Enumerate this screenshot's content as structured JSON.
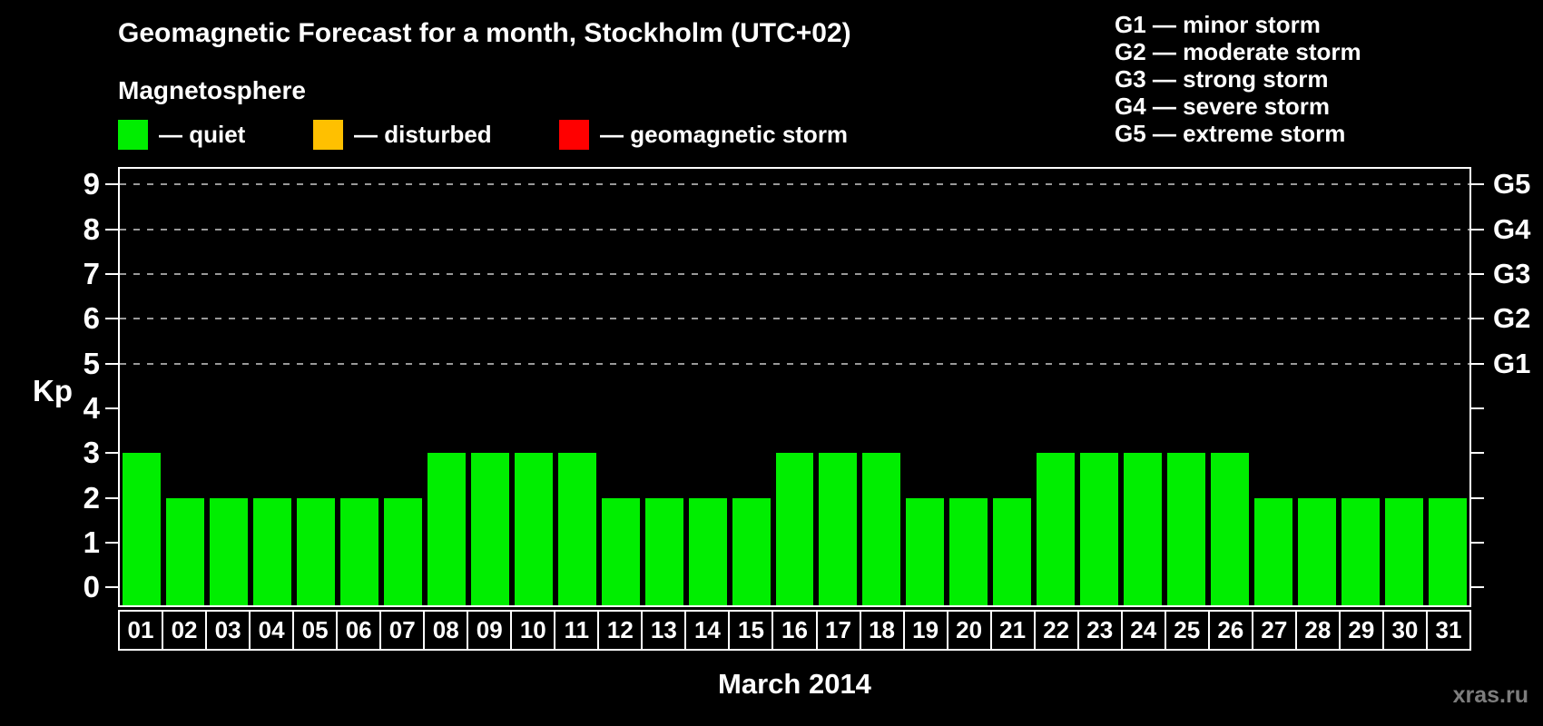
{
  "header": {
    "title": "Geomagnetic Forecast for a month, Stockholm (UTC+02)",
    "subtitle": "Magnetosphere"
  },
  "legend": {
    "items": [
      {
        "key": "quiet",
        "label": "— quiet",
        "color": "#00ee00"
      },
      {
        "key": "disturbed",
        "label": "— disturbed",
        "color": "#ffc000"
      },
      {
        "key": "geomagnetic-storm",
        "label": "— geomagnetic storm",
        "color": "#ff0000"
      }
    ]
  },
  "g_legend": {
    "items": [
      "G1 — minor storm",
      "G2 — moderate storm",
      "G3 — strong storm",
      "G4 — severe storm",
      "G5 — extreme storm"
    ]
  },
  "watermark": "xras.ru",
  "chart_data": {
    "type": "bar",
    "title": "Geomagnetic Forecast for a month, Stockholm (UTC+02)",
    "xlabel": "March 2014",
    "ylabel": "Kp",
    "categories": [
      "01",
      "02",
      "03",
      "04",
      "05",
      "06",
      "07",
      "08",
      "09",
      "10",
      "11",
      "12",
      "13",
      "14",
      "15",
      "16",
      "17",
      "18",
      "19",
      "20",
      "21",
      "22",
      "23",
      "24",
      "25",
      "26",
      "27",
      "28",
      "29",
      "30",
      "31"
    ],
    "values": [
      3,
      2,
      2,
      2,
      2,
      2,
      2,
      3,
      3,
      3,
      3,
      2,
      2,
      2,
      2,
      3,
      3,
      3,
      2,
      2,
      2,
      3,
      3,
      3,
      3,
      3,
      2,
      2,
      2,
      2,
      2
    ],
    "series_status": "quiet",
    "bar_color": "#00ee00",
    "ylim": [
      -0.4,
      9.35
    ],
    "yticks": [
      0,
      1,
      2,
      3,
      4,
      5,
      6,
      7,
      8,
      9
    ],
    "grid_levels": [
      5,
      6,
      7,
      8,
      9
    ],
    "grid_style": "horizontal dashed gray lines at storm levels only",
    "right_axis": [
      {
        "value": 5,
        "label": "G1"
      },
      {
        "value": 6,
        "label": "G2"
      },
      {
        "value": 7,
        "label": "G3"
      },
      {
        "value": 8,
        "label": "G4"
      },
      {
        "value": 9,
        "label": "G5"
      }
    ],
    "legend_position": "top-left above plot"
  },
  "colors": {
    "background": "#000000",
    "axis": "#ffffff",
    "gridline": "#999999",
    "text": "#ffffff",
    "watermark_text": "#7d7d7d"
  }
}
